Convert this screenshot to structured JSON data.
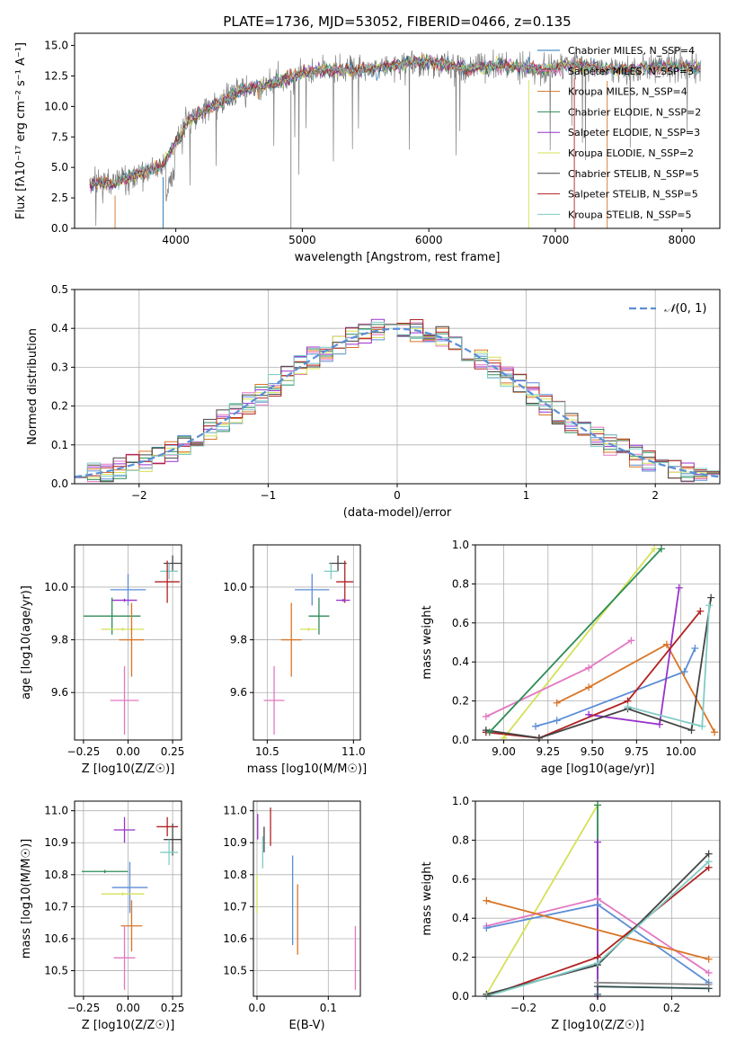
{
  "chart_data": [
    {
      "id": "spectrum",
      "type": "line",
      "title": "PLATE=1736, MJD=53052, FIBERID=0466, z=0.135",
      "xlabel": "wavelength [Angstrom, rest frame]",
      "ylabel": "Flux [fλ10⁻¹⁷ erg cm⁻² s⁻¹ A⁻¹]",
      "xlim": [
        3200,
        8300
      ],
      "ylim": [
        0,
        16
      ],
      "xticks": [
        4000,
        5000,
        6000,
        7000,
        8000
      ],
      "yticks": [
        0.0,
        2.5,
        5.0,
        7.5,
        10.0,
        12.5,
        15.0
      ],
      "data_trend": {
        "x": [
          3300,
          3500,
          3700,
          3900,
          4100,
          4300,
          4500,
          4700,
          4900,
          5100,
          5300,
          5500,
          5700,
          5900,
          6100,
          6300,
          6500,
          6700,
          6900,
          7100,
          7300,
          7500,
          7700,
          7900,
          8100
        ],
        "y": [
          3.7,
          3.6,
          4.5,
          5.2,
          8.8,
          10.0,
          11.3,
          11.7,
          12.3,
          12.9,
          13.0,
          13.0,
          13.3,
          13.7,
          13.5,
          13.1,
          13.3,
          13.3,
          13.0,
          13.4,
          13.2,
          13.0,
          13.1,
          13.3,
          13.2
        ]
      },
      "legend": [
        {
          "name": "Chabrier MILES, N_SSP=4",
          "color": "#1f77b4"
        },
        {
          "name": "Salpeter MILES, N_SSP=3",
          "color": "#e377c2"
        },
        {
          "name": "Kroupa MILES, N_SSP=4",
          "color": "#d97526"
        },
        {
          "name": "Chabrier ELODIE, N_SSP=2",
          "color": "#2e8b57"
        },
        {
          "name": "Salpeter ELODIE, N_SSP=3",
          "color": "#9932cc"
        },
        {
          "name": "Kroupa ELODIE, N_SSP=2",
          "color": "#d4e157"
        },
        {
          "name": "Chabrier STELIB, N_SSP=5",
          "color": "#444444"
        },
        {
          "name": "Salpeter STELIB, N_SSP=5",
          "color": "#b22222"
        },
        {
          "name": "Kroupa STELIB, N_SSP=5",
          "color": "#80cbc4"
        }
      ],
      "legend_position": "upper right"
    },
    {
      "id": "residuals",
      "type": "histogram",
      "xlabel": "(data-model)/error",
      "ylabel": "Normed distribution",
      "xlim": [
        -2.5,
        2.5
      ],
      "ylim": [
        0,
        0.5
      ],
      "xticks": [
        -2,
        -1,
        0,
        1,
        2
      ],
      "yticks": [
        0.0,
        0.1,
        0.2,
        0.3,
        0.4,
        0.5
      ],
      "reference_curve": {
        "label": "N(0,1)",
        "style": "dashed",
        "color": "#5b8ed6"
      },
      "legend_position": "upper right",
      "grid": true
    },
    {
      "id": "age-vs-Z",
      "type": "errorbar",
      "xlabel": "Z [log10(Z/Z☉)]",
      "ylabel": "age  [log10(age/yr)]",
      "xlim": [
        -0.3,
        0.3
      ],
      "ylim": [
        9.42,
        10.16
      ],
      "xticks": [
        -0.25,
        0.0,
        0.25
      ],
      "yticks": [
        9.6,
        9.8,
        10.0
      ],
      "points": [
        {
          "x": 0.25,
          "y": 10.09,
          "xerr": 0.05,
          "yerr": 0.03,
          "color": "#444444"
        },
        {
          "x": 0.23,
          "y": 10.06,
          "xerr": 0.05,
          "yerr": 0.03,
          "color": "#80cbc4"
        },
        {
          "x": 0.22,
          "y": 10.02,
          "xerr": 0.07,
          "yerr": 0.08,
          "color": "#b22222"
        },
        {
          "x": 0.0,
          "y": 9.99,
          "xerr": 0.1,
          "yerr": 0.06,
          "color": "#5b8ed6"
        },
        {
          "x": -0.02,
          "y": 9.95,
          "xerr": 0.07,
          "yerr": 0.0,
          "color": "#9932cc"
        },
        {
          "x": -0.09,
          "y": 9.89,
          "xerr": 0.16,
          "yerr": 0.07,
          "color": "#2e8b57"
        },
        {
          "x": -0.03,
          "y": 9.84,
          "xerr": 0.12,
          "yerr": 0.0,
          "color": "#d4e157"
        },
        {
          "x": 0.02,
          "y": 9.8,
          "xerr": 0.07,
          "yerr": 0.14,
          "color": "#d97526"
        },
        {
          "x": -0.02,
          "y": 9.57,
          "xerr": 0.08,
          "yerr": 0.13,
          "color": "#e377c2"
        }
      ],
      "grid": true
    },
    {
      "id": "age-vs-mass",
      "type": "errorbar",
      "xlabel": "mass [log10(M/M☉)]",
      "ylabel": "",
      "xlim": [
        10.42,
        11.04
      ],
      "ylim": [
        9.42,
        10.16
      ],
      "xticks": [
        10.5,
        11.0
      ],
      "yticks": [
        9.6,
        9.8,
        10.0
      ],
      "points": [
        {
          "x": 10.91,
          "y": 10.09,
          "xerr": 0.05,
          "yerr": 0.03,
          "color": "#444444"
        },
        {
          "x": 10.87,
          "y": 10.06,
          "xerr": 0.04,
          "yerr": 0.03,
          "color": "#80cbc4"
        },
        {
          "x": 10.95,
          "y": 10.02,
          "xerr": 0.05,
          "yerr": 0.08,
          "color": "#b22222"
        },
        {
          "x": 10.76,
          "y": 9.99,
          "xerr": 0.1,
          "yerr": 0.06,
          "color": "#5b8ed6"
        },
        {
          "x": 10.94,
          "y": 9.95,
          "xerr": 0.04,
          "yerr": 0.0,
          "color": "#9932cc"
        },
        {
          "x": 10.8,
          "y": 9.89,
          "xerr": 0.06,
          "yerr": 0.07,
          "color": "#2e8b57"
        },
        {
          "x": 10.74,
          "y": 9.84,
          "xerr": 0.05,
          "yerr": 0.0,
          "color": "#d4e157"
        },
        {
          "x": 10.64,
          "y": 9.8,
          "xerr": 0.06,
          "yerr": 0.14,
          "color": "#d97526"
        },
        {
          "x": 10.54,
          "y": 9.57,
          "xerr": 0.06,
          "yerr": 0.13,
          "color": "#e377c2"
        }
      ],
      "grid": true
    },
    {
      "id": "weight-vs-age",
      "type": "line",
      "xlabel": "age  [log10(age/yr)]",
      "ylabel": "mass weight",
      "xlim": [
        8.84,
        10.22
      ],
      "ylim": [
        0,
        1
      ],
      "xticks": [
        9.0,
        9.25,
        9.5,
        9.75,
        10.0
      ],
      "yticks": [
        0.0,
        0.2,
        0.4,
        0.6,
        0.8,
        1.0
      ],
      "series": [
        {
          "color": "#d4e157",
          "x": [
            9.0,
            9.85
          ],
          "y": [
            0.01,
            0.98
          ]
        },
        {
          "color": "#5b8ed6",
          "x": [
            9.18,
            9.3,
            10.02,
            10.08
          ],
          "y": [
            0.07,
            0.1,
            0.35,
            0.47
          ]
        },
        {
          "color": "#d97526",
          "x": [
            9.3,
            9.48,
            9.92,
            10.19
          ],
          "y": [
            0.19,
            0.27,
            0.49,
            0.04
          ]
        },
        {
          "color": "#e377c2",
          "x": [
            8.9,
            9.48,
            9.72
          ],
          "y": [
            0.12,
            0.37,
            0.51
          ]
        },
        {
          "color": "#9932cc",
          "x": [
            9.48,
            9.88,
            9.99
          ],
          "y": [
            0.13,
            0.08,
            0.78
          ]
        },
        {
          "color": "#b22222",
          "x": [
            8.9,
            9.2,
            9.7,
            10.11
          ],
          "y": [
            0.04,
            0.01,
            0.2,
            0.66
          ]
        },
        {
          "color": "#444444",
          "x": [
            8.9,
            9.2,
            9.7,
            10.06,
            10.17
          ],
          "y": [
            0.05,
            0.01,
            0.16,
            0.05,
            0.73
          ]
        },
        {
          "color": "#80cbc4",
          "x": [
            9.7,
            10.12,
            10.16
          ],
          "y": [
            0.17,
            0.07,
            0.69
          ]
        },
        {
          "color": "#2e8b57",
          "x": [
            8.92,
            9.89
          ],
          "y": [
            0.04,
            0.98
          ]
        }
      ],
      "grid": true
    },
    {
      "id": "mass-vs-Z",
      "type": "errorbar",
      "xlabel": "Z [log10(Z/Z☉)]",
      "ylabel": "mass [log10(M/M☉)]",
      "xlim": [
        -0.3,
        0.3
      ],
      "ylim": [
        10.42,
        11.03
      ],
      "xticks": [
        -0.25,
        0.0,
        0.25
      ],
      "yticks": [
        10.5,
        10.6,
        10.7,
        10.8,
        10.9,
        11.0
      ],
      "points": [
        {
          "x": 0.22,
          "y": 10.95,
          "xerr": 0.06,
          "yerr": 0.03,
          "color": "#b22222"
        },
        {
          "x": -0.02,
          "y": 10.94,
          "xerr": 0.06,
          "yerr": 0.04,
          "color": "#9932cc"
        },
        {
          "x": 0.25,
          "y": 10.91,
          "xerr": 0.05,
          "yerr": 0.05,
          "color": "#444444"
        },
        {
          "x": 0.23,
          "y": 10.87,
          "xerr": 0.05,
          "yerr": 0.04,
          "color": "#80cbc4"
        },
        {
          "x": -0.13,
          "y": 10.81,
          "xerr": 0.13,
          "yerr": 0.0,
          "color": "#2e8b57"
        },
        {
          "x": 0.01,
          "y": 10.76,
          "xerr": 0.1,
          "yerr": 0.08,
          "color": "#5b8ed6"
        },
        {
          "x": -0.03,
          "y": 10.74,
          "xerr": 0.12,
          "yerr": 0.0,
          "color": "#d4e157"
        },
        {
          "x": 0.02,
          "y": 10.64,
          "xerr": 0.06,
          "yerr": 0.08,
          "color": "#d97526"
        },
        {
          "x": -0.02,
          "y": 10.54,
          "xerr": 0.06,
          "yerr": 0.1,
          "color": "#e377c2"
        }
      ],
      "grid": true
    },
    {
      "id": "mass-vs-ebv",
      "type": "errorbar",
      "xlabel": "E(B-V)",
      "ylabel": "",
      "xlim": [
        -0.005,
        0.145
      ],
      "ylim": [
        10.42,
        11.03
      ],
      "xticks": [
        0.0,
        0.1
      ],
      "yticks": [
        10.5,
        10.6,
        10.7,
        10.8,
        10.9,
        11.0
      ],
      "points": [
        {
          "x": 0.0,
          "y": 10.74,
          "xerr": 0.0,
          "yerr": 0.06,
          "color": "#d4e157"
        },
        {
          "x": 0.001,
          "y": 10.95,
          "xerr": 0.0,
          "yerr": 0.04,
          "color": "#9932cc"
        },
        {
          "x": 0.008,
          "y": 10.87,
          "xerr": 0.0,
          "yerr": 0.05,
          "color": "#80cbc4"
        },
        {
          "x": 0.01,
          "y": 10.91,
          "xerr": 0.0,
          "yerr": 0.04,
          "color": "#444444"
        },
        {
          "x": 0.019,
          "y": 10.95,
          "xerr": 0.0,
          "yerr": 0.06,
          "color": "#b22222"
        },
        {
          "x": 0.05,
          "y": 10.72,
          "xerr": 0.0,
          "yerr": 0.14,
          "color": "#5b8ed6"
        },
        {
          "x": 0.057,
          "y": 10.66,
          "xerr": 0.0,
          "yerr": 0.11,
          "color": "#d97526"
        },
        {
          "x": 0.138,
          "y": 10.54,
          "xerr": 0.0,
          "yerr": 0.1,
          "color": "#e377c2"
        }
      ],
      "grid": true
    },
    {
      "id": "weight-vs-Z",
      "type": "line",
      "xlabel": "Z [log10(Z/Z☉)]",
      "ylabel": "mass weight",
      "xlim": [
        -0.33,
        0.33
      ],
      "ylim": [
        0,
        1
      ],
      "xticks": [
        -0.2,
        0.0,
        0.2
      ],
      "yticks": [
        0.0,
        0.2,
        0.4,
        0.6,
        0.8,
        1.0
      ],
      "series": [
        {
          "color": "#d4e157",
          "x": [
            -0.3,
            0.0
          ],
          "y": [
            0.01,
            0.98
          ]
        },
        {
          "color": "#2e8b57",
          "x": [
            0.0,
            0.0
          ],
          "y": [
            0.01,
            0.98
          ]
        },
        {
          "color": "#9932cc",
          "x": [
            0.0,
            0.0
          ],
          "y": [
            0.0,
            0.79
          ]
        },
        {
          "color": "#e377c2",
          "x": [
            -0.3,
            0.0,
            0.3
          ],
          "y": [
            0.36,
            0.5,
            0.12
          ]
        },
        {
          "color": "#5b8ed6",
          "x": [
            -0.3,
            0.0,
            0.3
          ],
          "y": [
            0.35,
            0.47,
            0.07
          ]
        },
        {
          "color": "#d97526",
          "x": [
            -0.3,
            0.3
          ],
          "y": [
            0.49,
            0.19
          ]
        },
        {
          "color": "#b22222",
          "x": [
            -0.3,
            0.0,
            0.3
          ],
          "y": [
            0.0,
            0.2,
            0.66
          ]
        },
        {
          "color": "#444444",
          "x": [
            -0.3,
            0.0,
            0.3
          ],
          "y": [
            0.01,
            0.16,
            0.73
          ]
        },
        {
          "color": "#80cbc4",
          "x": [
            -0.3,
            0.0,
            0.3
          ],
          "y": [
            0.0,
            0.17,
            0.69
          ]
        },
        {
          "color": "#2f4f4f",
          "x": [
            0.0,
            0.3
          ],
          "y": [
            0.05,
            0.04
          ]
        },
        {
          "color": "#888888",
          "x": [
            0.0,
            0.3
          ],
          "y": [
            0.07,
            0.06
          ]
        }
      ],
      "grid": true
    }
  ]
}
